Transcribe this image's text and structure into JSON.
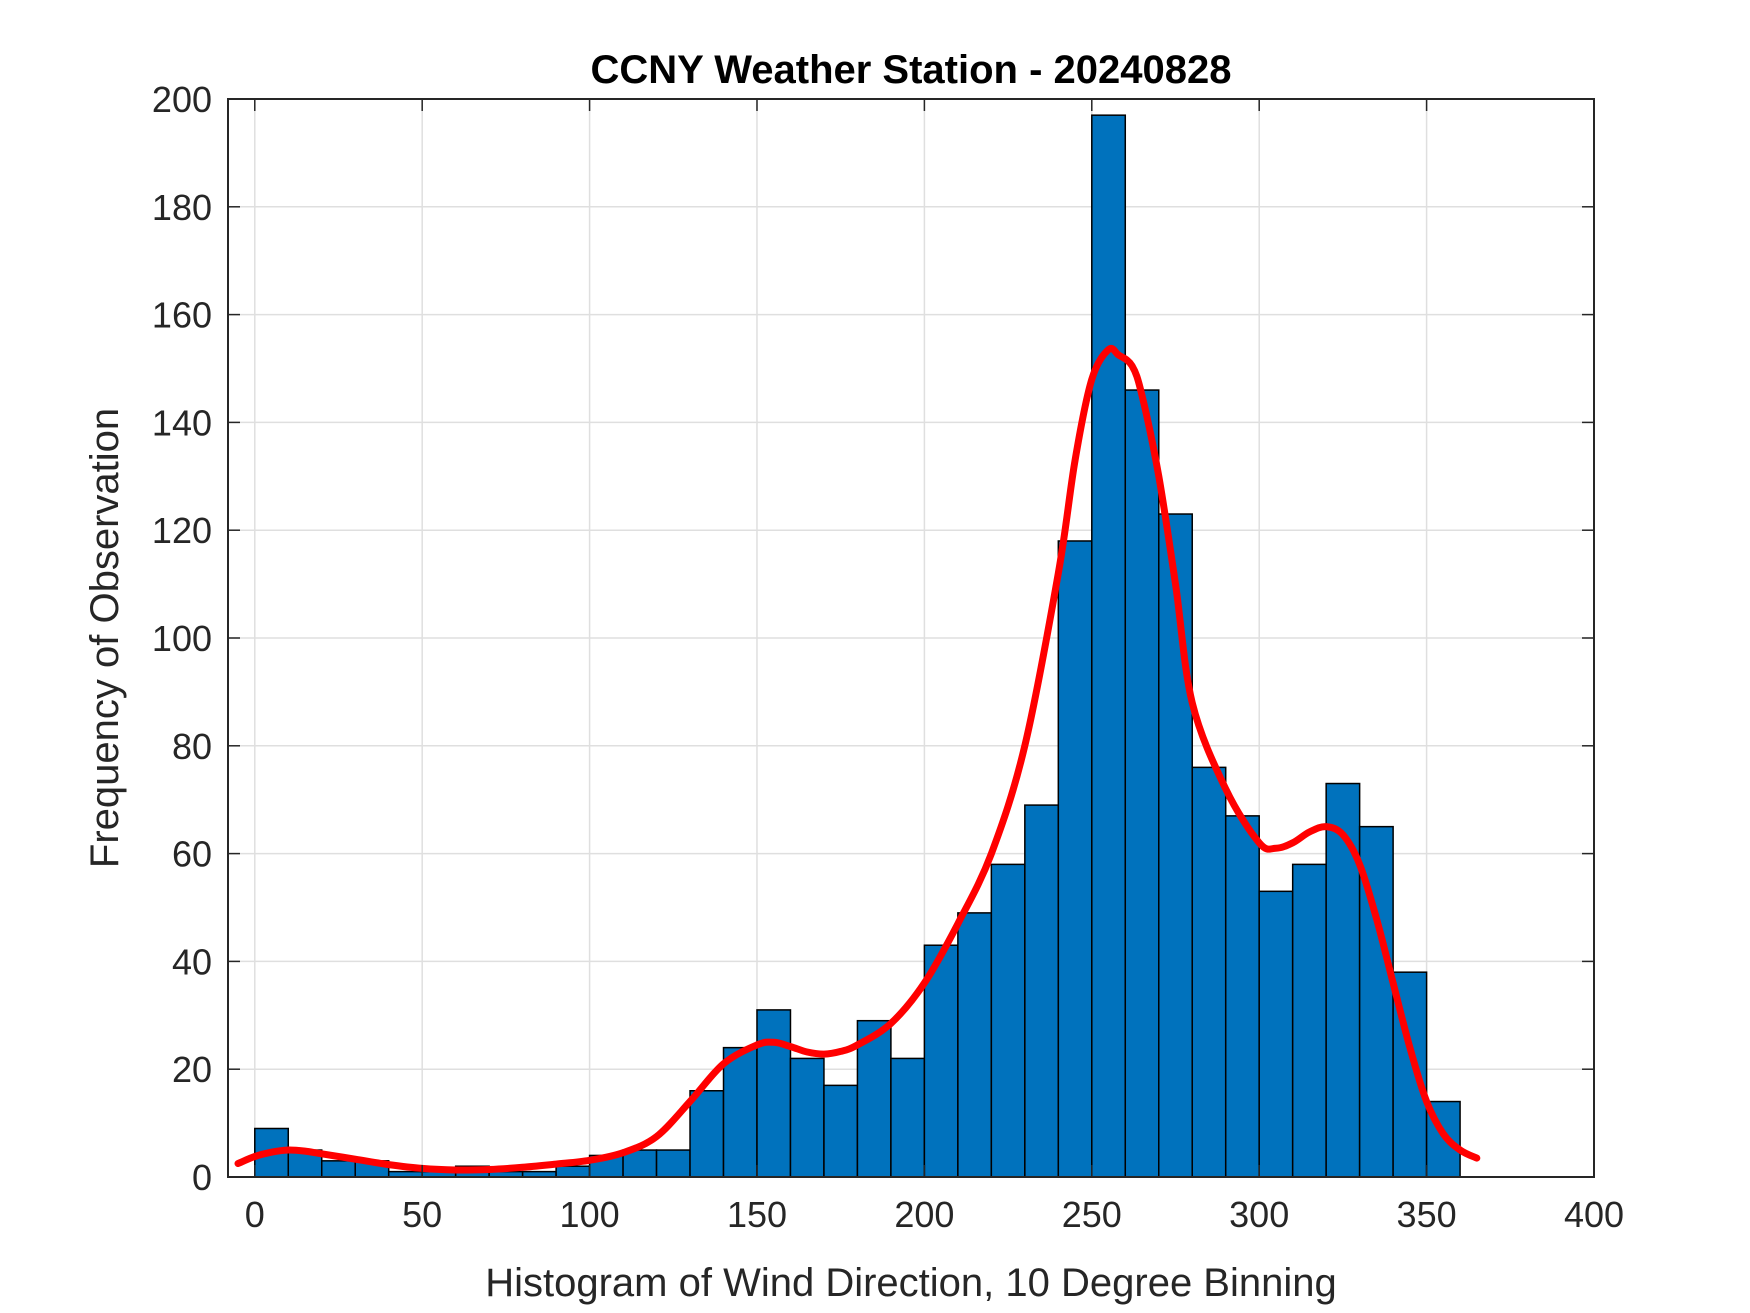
{
  "chart_data": {
    "type": "bar",
    "title": "CCNY Weather Station - 20240828",
    "xlabel": "Histogram of Wind Direction, 10 Degree Binning",
    "ylabel": "Frequency of Observation",
    "xlim": [
      -8,
      400
    ],
    "ylim": [
      0,
      200
    ],
    "xticks": [
      0,
      50,
      100,
      150,
      200,
      250,
      300,
      350,
      400
    ],
    "yticks": [
      0,
      20,
      40,
      60,
      80,
      100,
      120,
      140,
      160,
      180,
      200
    ],
    "grid": true,
    "bin_width": 10,
    "bins": [
      {
        "start": 0,
        "value": 9
      },
      {
        "start": 10,
        "value": 5
      },
      {
        "start": 20,
        "value": 3
      },
      {
        "start": 30,
        "value": 3
      },
      {
        "start": 40,
        "value": 1
      },
      {
        "start": 50,
        "value": 1
      },
      {
        "start": 60,
        "value": 2
      },
      {
        "start": 70,
        "value": 1
      },
      {
        "start": 80,
        "value": 1
      },
      {
        "start": 90,
        "value": 2
      },
      {
        "start": 100,
        "value": 4
      },
      {
        "start": 110,
        "value": 5
      },
      {
        "start": 120,
        "value": 5
      },
      {
        "start": 130,
        "value": 16
      },
      {
        "start": 140,
        "value": 24
      },
      {
        "start": 150,
        "value": 31
      },
      {
        "start": 160,
        "value": 22
      },
      {
        "start": 170,
        "value": 17
      },
      {
        "start": 180,
        "value": 29
      },
      {
        "start": 190,
        "value": 22
      },
      {
        "start": 200,
        "value": 43
      },
      {
        "start": 210,
        "value": 49
      },
      {
        "start": 220,
        "value": 58
      },
      {
        "start": 230,
        "value": 69
      },
      {
        "start": 240,
        "value": 118
      },
      {
        "start": 250,
        "value": 197
      },
      {
        "start": 260,
        "value": 146
      },
      {
        "start": 270,
        "value": 123
      },
      {
        "start": 280,
        "value": 76
      },
      {
        "start": 290,
        "value": 67
      },
      {
        "start": 300,
        "value": 53
      },
      {
        "start": 310,
        "value": 58
      },
      {
        "start": 320,
        "value": 73
      },
      {
        "start": 330,
        "value": 65
      },
      {
        "start": 340,
        "value": 38
      },
      {
        "start": 350,
        "value": 14
      }
    ],
    "fit_curve": {
      "x": [
        -5,
        0,
        5,
        10,
        15,
        20,
        30,
        40,
        50,
        60,
        70,
        80,
        90,
        100,
        110,
        120,
        130,
        140,
        150,
        155,
        160,
        165,
        170,
        175,
        180,
        190,
        200,
        210,
        220,
        230,
        240,
        245,
        250,
        255,
        258,
        262,
        265,
        270,
        275,
        280,
        290,
        300,
        305,
        310,
        315,
        320,
        325,
        330,
        335,
        340,
        345,
        350,
        355,
        360,
        365
      ],
      "y": [
        2.5,
        3.8,
        4.6,
        5,
        4.8,
        4.3,
        3.3,
        2.3,
        1.6,
        1.3,
        1.4,
        1.8,
        2.4,
        3.1,
        4.5,
        7.5,
        14,
        21,
        24.5,
        25,
        24.2,
        23.2,
        22.8,
        23.3,
        24.5,
        28.5,
        36,
        47,
        60,
        80,
        112,
        133,
        148,
        153.5,
        152.5,
        150.5,
        145,
        130,
        110,
        88,
        72,
        62,
        61,
        62,
        64,
        65,
        63.5,
        58,
        48,
        36,
        24,
        14,
        8,
        5,
        3.5
      ],
      "color": "#ff0000"
    },
    "colors": {
      "bar_fill": "#0072bd",
      "bar_edge": "#000000",
      "grid": "#dfdfdf",
      "axis": "#262626"
    }
  }
}
